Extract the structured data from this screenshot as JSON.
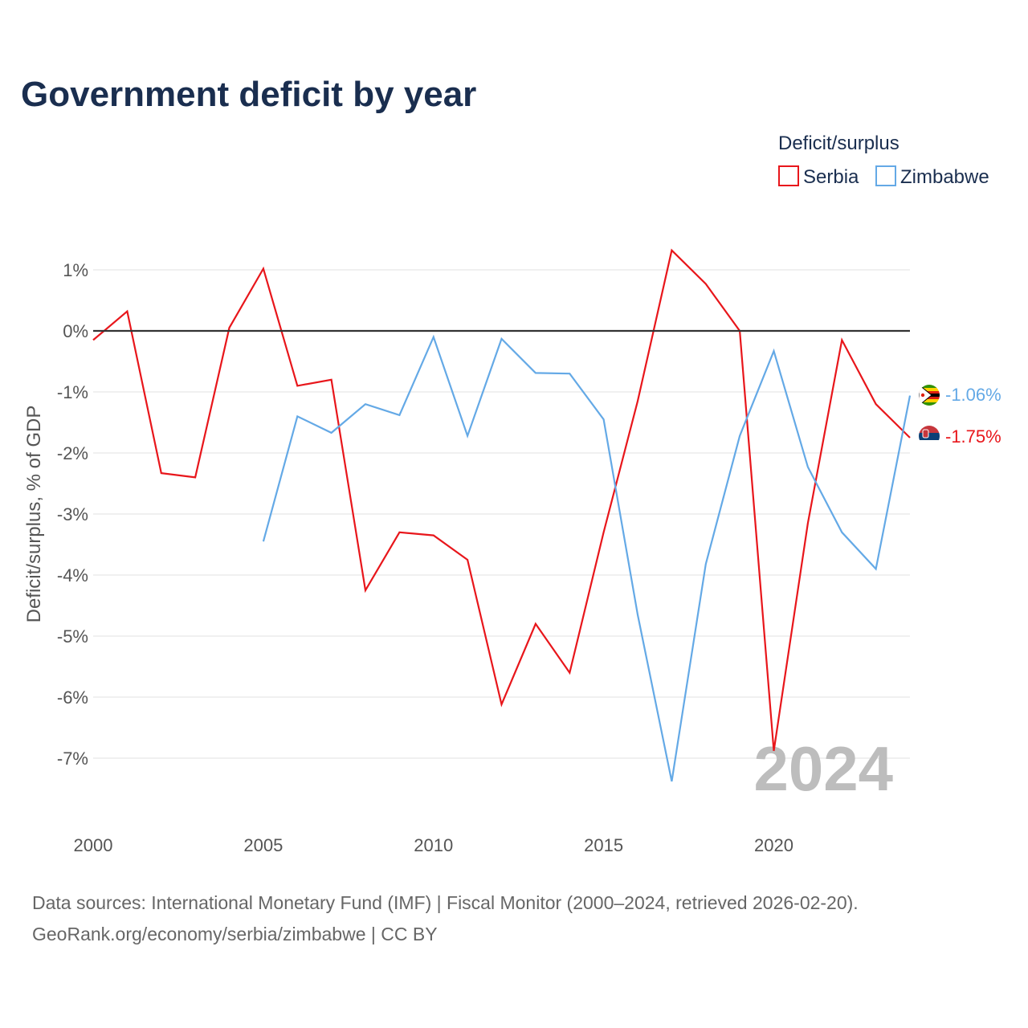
{
  "title": "Government deficit by year",
  "legend": {
    "title": "Deficit/surplus",
    "items": [
      {
        "name": "Serbia",
        "color": "#e8161b"
      },
      {
        "name": "Zimbabwe",
        "color": "#64a9e6"
      }
    ]
  },
  "year_overlay": "2024",
  "end_labels": {
    "serbia": "-1.75%",
    "zimbabwe": "-1.06%"
  },
  "source_line1": "Data sources: International Monetary Fund (IMF) | Fiscal Monitor (2000–2024, retrieved 2026-02-20).",
  "source_line2": "GeoRank.org/economy/serbia/zimbabwe | CC BY",
  "chart_data": {
    "type": "line",
    "title": "Government deficit by year",
    "xlabel": "",
    "ylabel": "Deficit/surplus, % of GDP",
    "xlim": [
      2000,
      2024
    ],
    "ylim": [
      -8,
      1.5
    ],
    "x_ticks": [
      2000,
      2005,
      2010,
      2015,
      2020
    ],
    "y_ticks": [
      1,
      0,
      -1,
      -2,
      -3,
      -4,
      -5,
      -6,
      -7
    ],
    "y_tick_labels": [
      "1%",
      "0%",
      "-1%",
      "-2%",
      "-3%",
      "-4%",
      "-5%",
      "-6%",
      "-7%"
    ],
    "series": [
      {
        "name": "Serbia",
        "color": "#e8161b",
        "x": [
          2000,
          2001,
          2002,
          2003,
          2004,
          2005,
          2006,
          2007,
          2008,
          2009,
          2010,
          2011,
          2012,
          2013,
          2014,
          2015,
          2016,
          2017,
          2018,
          2019,
          2020,
          2021,
          2022,
          2023,
          2024
        ],
        "values": [
          -0.15,
          0.32,
          -2.33,
          -2.4,
          0.05,
          1.02,
          -0.9,
          -0.8,
          -4.25,
          -3.3,
          -3.35,
          -3.75,
          -6.12,
          -4.8,
          -5.6,
          -3.3,
          -1.15,
          1.32,
          0.77,
          0.0,
          -6.88,
          -3.15,
          -0.15,
          -1.2,
          -1.75
        ]
      },
      {
        "name": "Zimbabwe",
        "color": "#64a9e6",
        "x": [
          2005,
          2006,
          2007,
          2008,
          2009,
          2010,
          2011,
          2012,
          2013,
          2014,
          2015,
          2016,
          2017,
          2018,
          2019,
          2020,
          2021,
          2022,
          2023,
          2024
        ],
        "values": [
          -3.45,
          -1.4,
          -1.67,
          -1.2,
          -1.38,
          -0.1,
          -1.72,
          -0.13,
          -0.69,
          -0.7,
          -1.45,
          -4.65,
          -7.38,
          -3.82,
          -1.72,
          -0.33,
          -2.23,
          -3.3,
          -3.9,
          -1.06
        ]
      }
    ]
  }
}
